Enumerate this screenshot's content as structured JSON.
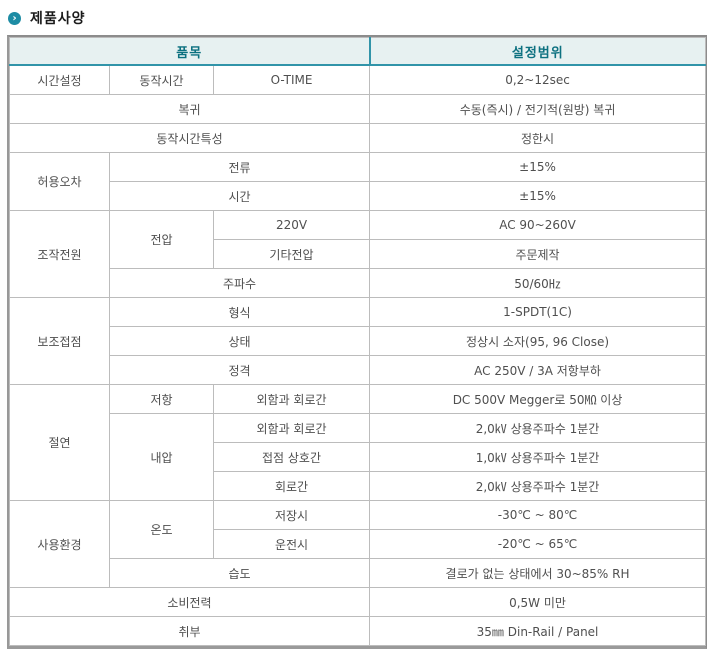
{
  "page": {
    "title": "제품사양",
    "bullet_icon": "chevron-right-circle-icon",
    "bullet_glyph": "›"
  },
  "colors": {
    "accent_teal": "#2e93a8",
    "header_bg": "#e7f1f1",
    "header_text": "#0d7180",
    "inner_border": "#bcbcbc",
    "outer_border": "#8c8c8c",
    "body_text": "#4f4f4f",
    "bullet_bg": "#1d8ca4"
  },
  "table": {
    "header": {
      "item": "품목",
      "range": "설정범위"
    },
    "rows": [
      [
        {
          "text": "시간설정"
        },
        {
          "text": "동작시간"
        },
        {
          "text": "O-TIME"
        },
        {
          "text": "0,2~12sec",
          "kind": "value"
        }
      ],
      [
        {
          "text": "복귀",
          "colspan": 3
        },
        {
          "text": "수동(즉시) / 전기적(원방) 복귀",
          "kind": "value"
        }
      ],
      [
        {
          "text": "동작시간특성",
          "colspan": 3
        },
        {
          "text": "정한시",
          "kind": "value"
        }
      ],
      [
        {
          "text": "허용오차",
          "rowspan": 2
        },
        {
          "text": "전류",
          "colspan": 2
        },
        {
          "text": "±15%",
          "kind": "value"
        }
      ],
      [
        {
          "text": "시간",
          "colspan": 2
        },
        {
          "text": "±15%",
          "kind": "value"
        }
      ],
      [
        {
          "text": "조작전원",
          "rowspan": 3
        },
        {
          "text": "전압",
          "rowspan": 2
        },
        {
          "text": "220V"
        },
        {
          "text": "AC 90~260V",
          "kind": "value"
        }
      ],
      [
        {
          "text": "기타전압"
        },
        {
          "text": "주문제작",
          "kind": "value"
        }
      ],
      [
        {
          "text": "주파수",
          "colspan": 2
        },
        {
          "text": "50/60㎐",
          "kind": "value"
        }
      ],
      [
        {
          "text": "보조접점",
          "rowspan": 3
        },
        {
          "text": "형식",
          "colspan": 2
        },
        {
          "text": "1-SPDT(1C)",
          "kind": "value"
        }
      ],
      [
        {
          "text": "상태",
          "colspan": 2
        },
        {
          "text": "정상시 소자(95, 96 Close)",
          "kind": "value"
        }
      ],
      [
        {
          "text": "정격",
          "colspan": 2
        },
        {
          "text": "AC 250V / 3A 저항부하",
          "kind": "value"
        }
      ],
      [
        {
          "text": "절연",
          "rowspan": 4
        },
        {
          "text": "저항"
        },
        {
          "text": "외함과 회로간"
        },
        {
          "text": "DC 500V Megger로 50㏁ 이상",
          "kind": "value"
        }
      ],
      [
        {
          "text": "내압",
          "rowspan": 3
        },
        {
          "text": "외함과 회로간"
        },
        {
          "text": "2,0㎸ 상용주파수 1분간",
          "kind": "value"
        }
      ],
      [
        {
          "text": "접점 상호간"
        },
        {
          "text": "1,0㎸ 상용주파수 1분간",
          "kind": "value"
        }
      ],
      [
        {
          "text": "회로간"
        },
        {
          "text": "2,0㎸ 상용주파수 1분간",
          "kind": "value"
        }
      ],
      [
        {
          "text": "사용환경",
          "rowspan": 3
        },
        {
          "text": "온도",
          "rowspan": 2
        },
        {
          "text": "저장시"
        },
        {
          "text": "-30℃ ~ 80℃",
          "kind": "value"
        }
      ],
      [
        {
          "text": "운전시"
        },
        {
          "text": "-20℃ ~ 65℃",
          "kind": "value"
        }
      ],
      [
        {
          "text": "습도",
          "colspan": 2
        },
        {
          "text": "결로가 없는 상태에서 30~85% RH",
          "kind": "value"
        }
      ],
      [
        {
          "text": "소비전력",
          "colspan": 3
        },
        {
          "text": "0,5W 미만",
          "kind": "value"
        }
      ],
      [
        {
          "text": "취부",
          "colspan": 3
        },
        {
          "text": "35㎜ Din-Rail / Panel",
          "kind": "value"
        }
      ]
    ]
  }
}
